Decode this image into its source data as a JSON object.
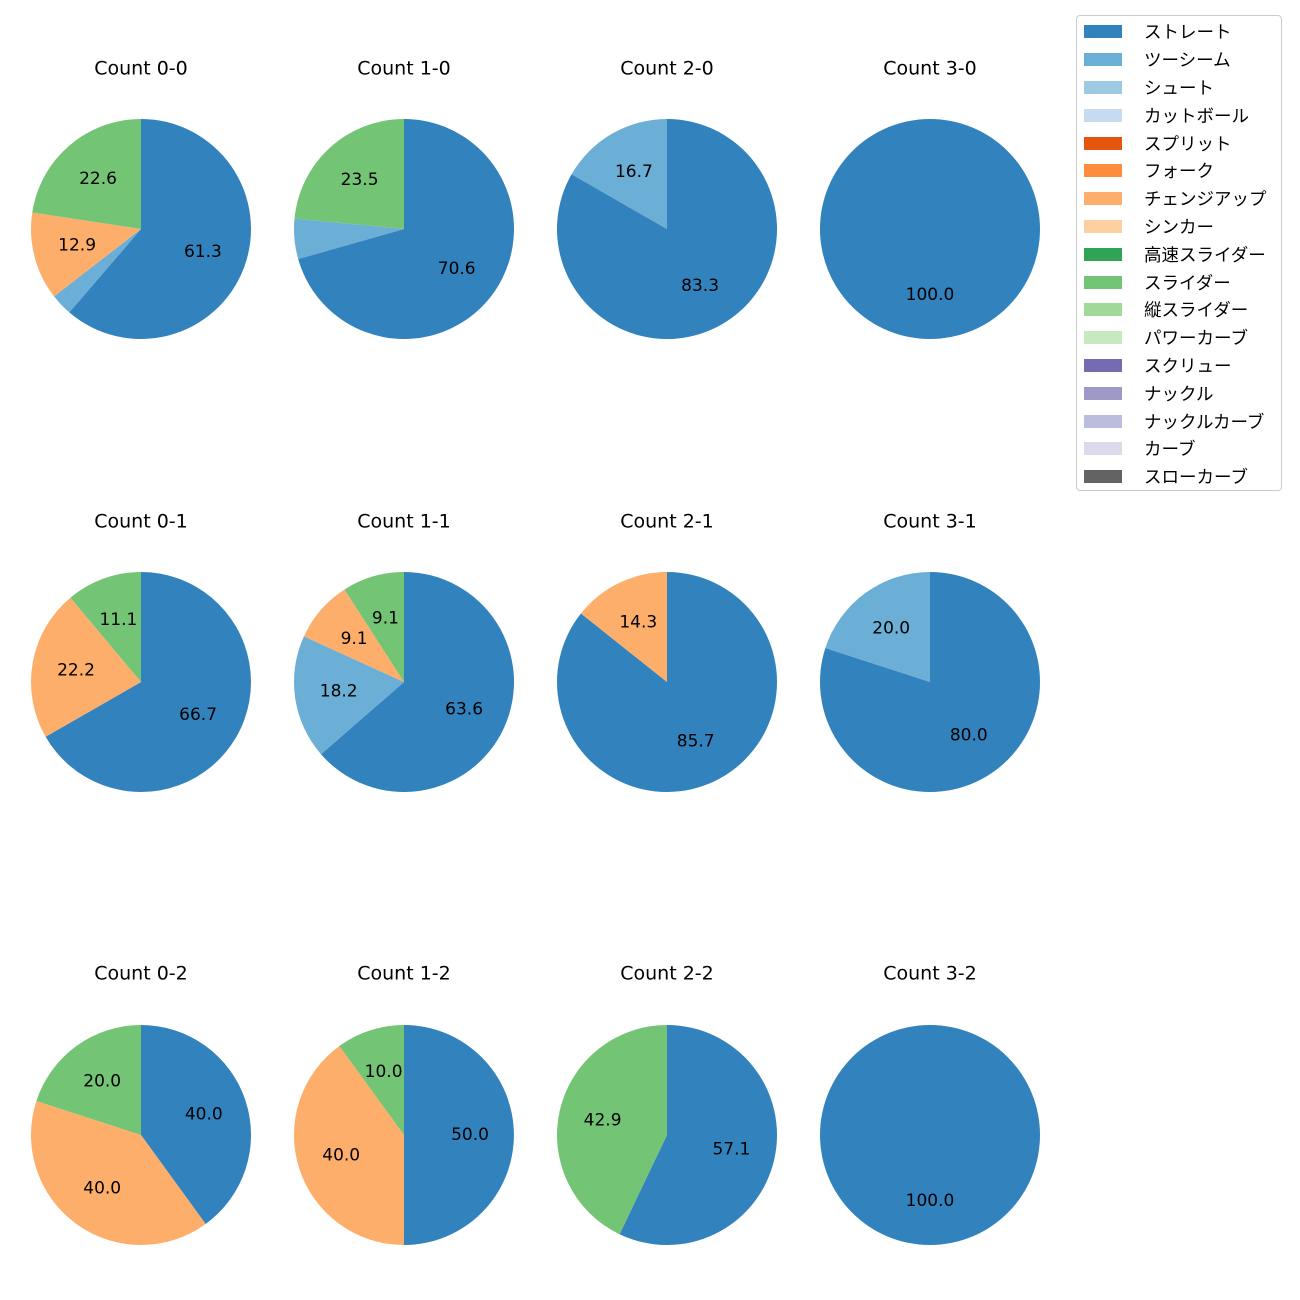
{
  "legend": [
    {
      "label": "ストレート",
      "color": "#3182bd"
    },
    {
      "label": "ツーシーム",
      "color": "#6baed6"
    },
    {
      "label": "シュート",
      "color": "#9ecae1"
    },
    {
      "label": "カットボール",
      "color": "#c6dbef"
    },
    {
      "label": "スプリット",
      "color": "#e6550d"
    },
    {
      "label": "フォーク",
      "color": "#fd8d3c"
    },
    {
      "label": "チェンジアップ",
      "color": "#fdae6b"
    },
    {
      "label": "シンカー",
      "color": "#fdd0a2"
    },
    {
      "label": "高速スライダー",
      "color": "#31a354"
    },
    {
      "label": "スライダー",
      "color": "#74c476"
    },
    {
      "label": "縦スライダー",
      "color": "#a1d99b"
    },
    {
      "label": "パワーカーブ",
      "color": "#c7e9c0"
    },
    {
      "label": "スクリュー",
      "color": "#756bb1"
    },
    {
      "label": "ナックル",
      "color": "#9e9ac8"
    },
    {
      "label": "ナックルカーブ",
      "color": "#bcbddc"
    },
    {
      "label": "カーブ",
      "color": "#dadaeb"
    },
    {
      "label": "スローカーブ",
      "color": "#636363"
    }
  ],
  "chart_data": [
    {
      "type": "pie",
      "title": "Count 0-0",
      "slices": [
        {
          "category": "ストレート",
          "value": 61.3,
          "label": "61.3"
        },
        {
          "category": "ツーシーム",
          "value": 3.2,
          "label": ""
        },
        {
          "category": "チェンジアップ",
          "value": 12.9,
          "label": "12.9"
        },
        {
          "category": "スライダー",
          "value": 22.6,
          "label": "22.6"
        }
      ]
    },
    {
      "type": "pie",
      "title": "Count 1-0",
      "slices": [
        {
          "category": "ストレート",
          "value": 70.6,
          "label": "70.6"
        },
        {
          "category": "ツーシーム",
          "value": 5.9,
          "label": ""
        },
        {
          "category": "スライダー",
          "value": 23.5,
          "label": "23.5"
        }
      ]
    },
    {
      "type": "pie",
      "title": "Count 2-0",
      "slices": [
        {
          "category": "ストレート",
          "value": 83.3,
          "label": "83.3"
        },
        {
          "category": "ツーシーム",
          "value": 16.7,
          "label": "16.7"
        }
      ]
    },
    {
      "type": "pie",
      "title": "Count 3-0",
      "slices": [
        {
          "category": "ストレート",
          "value": 100.0,
          "label": "100.0"
        }
      ]
    },
    {
      "type": "pie",
      "title": "Count 0-1",
      "slices": [
        {
          "category": "ストレート",
          "value": 66.7,
          "label": "66.7"
        },
        {
          "category": "チェンジアップ",
          "value": 22.2,
          "label": "22.2"
        },
        {
          "category": "スライダー",
          "value": 11.1,
          "label": "11.1"
        }
      ]
    },
    {
      "type": "pie",
      "title": "Count 1-1",
      "slices": [
        {
          "category": "ストレート",
          "value": 63.6,
          "label": "63.6"
        },
        {
          "category": "ツーシーム",
          "value": 18.2,
          "label": "18.2"
        },
        {
          "category": "チェンジアップ",
          "value": 9.1,
          "label": "9.1"
        },
        {
          "category": "スライダー",
          "value": 9.1,
          "label": "9.1"
        }
      ]
    },
    {
      "type": "pie",
      "title": "Count 2-1",
      "slices": [
        {
          "category": "ストレート",
          "value": 85.7,
          "label": "85.7"
        },
        {
          "category": "チェンジアップ",
          "value": 14.3,
          "label": "14.3"
        }
      ]
    },
    {
      "type": "pie",
      "title": "Count 3-1",
      "slices": [
        {
          "category": "ストレート",
          "value": 80.0,
          "label": "80.0"
        },
        {
          "category": "ツーシーム",
          "value": 20.0,
          "label": "20.0"
        }
      ]
    },
    {
      "type": "pie",
      "title": "Count 0-2",
      "slices": [
        {
          "category": "ストレート",
          "value": 40.0,
          "label": "40.0"
        },
        {
          "category": "チェンジアップ",
          "value": 40.0,
          "label": "40.0"
        },
        {
          "category": "スライダー",
          "value": 20.0,
          "label": "20.0"
        }
      ]
    },
    {
      "type": "pie",
      "title": "Count 1-2",
      "slices": [
        {
          "category": "ストレート",
          "value": 50.0,
          "label": "50.0"
        },
        {
          "category": "チェンジアップ",
          "value": 40.0,
          "label": "40.0"
        },
        {
          "category": "スライダー",
          "value": 10.0,
          "label": "10.0"
        }
      ]
    },
    {
      "type": "pie",
      "title": "Count 2-2",
      "slices": [
        {
          "category": "ストレート",
          "value": 57.1,
          "label": "57.1"
        },
        {
          "category": "スライダー",
          "value": 42.9,
          "label": "42.9"
        }
      ]
    },
    {
      "type": "pie",
      "title": "Count 3-2",
      "slices": [
        {
          "category": "ストレート",
          "value": 100.0,
          "label": "100.0"
        }
      ]
    }
  ]
}
